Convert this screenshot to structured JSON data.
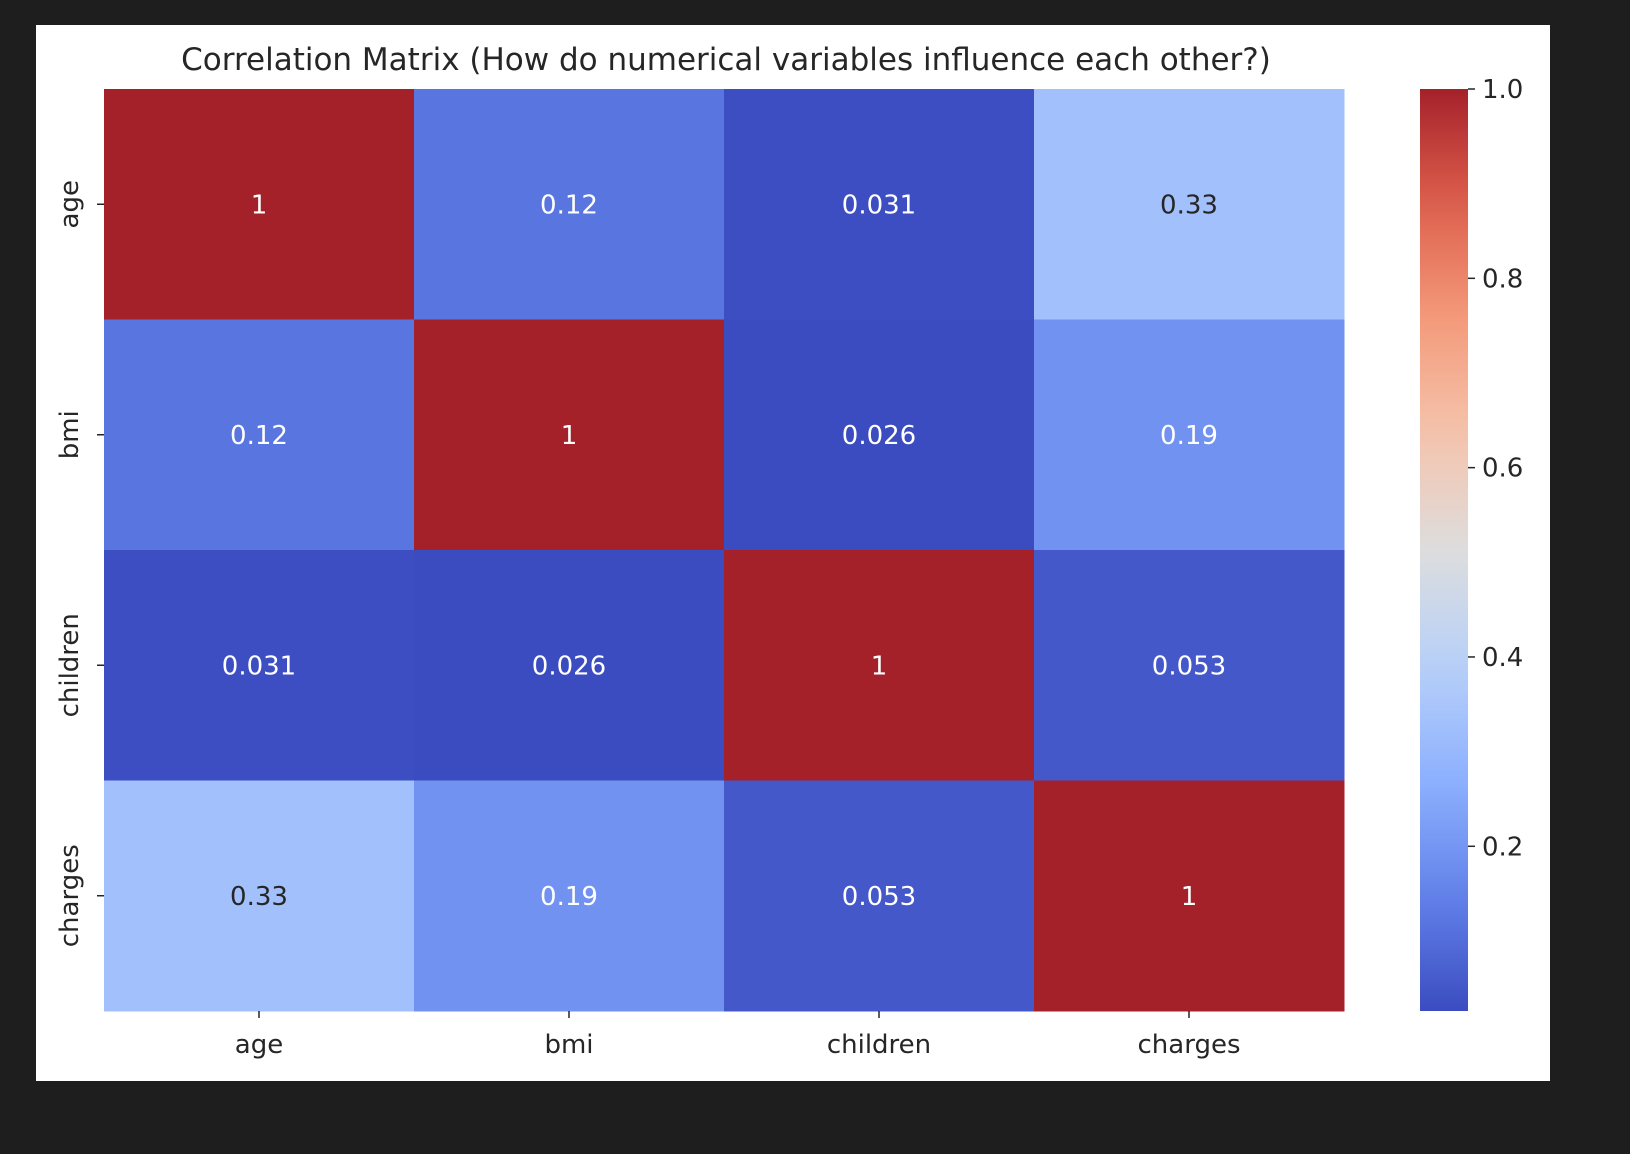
{
  "chart_data": {
    "type": "heatmap",
    "title": "Correlation Matrix (How do numerical variables influence each other?)",
    "x_labels": [
      "age",
      "bmi",
      "children",
      "charges"
    ],
    "y_labels": [
      "age",
      "bmi",
      "children",
      "charges"
    ],
    "values": [
      [
        1.0,
        0.12,
        0.031,
        0.33
      ],
      [
        0.12,
        1.0,
        0.026,
        0.19
      ],
      [
        0.031,
        0.026,
        1.0,
        0.053
      ],
      [
        0.33,
        0.19,
        0.053,
        1.0
      ]
    ],
    "annotations": [
      [
        "1",
        "0.12",
        "0.031",
        "0.33"
      ],
      [
        "0.12",
        "1",
        "0.026",
        "0.19"
      ],
      [
        "0.031",
        "0.026",
        "1",
        "0.053"
      ],
      [
        "0.33",
        "0.19",
        "0.053",
        "1"
      ]
    ],
    "colormap": "coolwarm",
    "vmin": 0.026,
    "vmax": 1.0,
    "colorbar_ticks": [
      "0.2",
      "0.4",
      "0.6",
      "0.8",
      "1.0"
    ],
    "colorbar_tick_values": [
      0.2,
      0.4,
      0.6,
      0.8,
      1.0
    ]
  },
  "colors": {
    "background": "#1e1e1e",
    "figure": "#ffffff",
    "text": "#262626",
    "annotation_light": "#ffffff",
    "annotation_dark": "#262626"
  }
}
